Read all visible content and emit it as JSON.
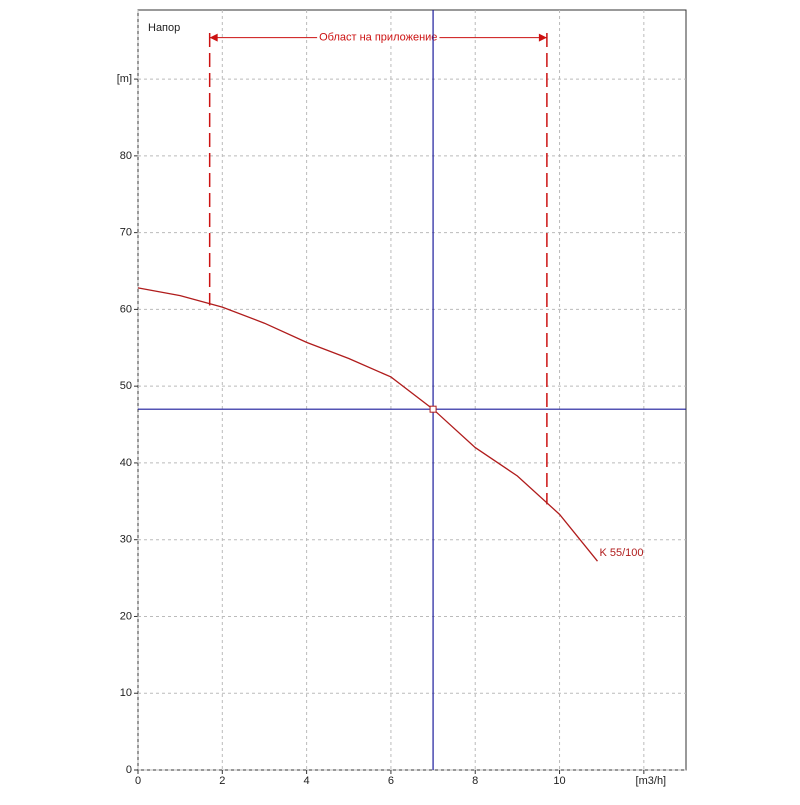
{
  "chart_data": {
    "type": "line",
    "title": "Напор",
    "x": [
      0,
      1,
      2,
      3,
      4,
      5,
      6,
      7,
      8,
      9,
      10,
      10.9
    ],
    "series": [
      {
        "name": "K 55/100",
        "color": "#b01c1c",
        "values": [
          62.8,
          61.8,
          60.3,
          58.2,
          55.7,
          53.6,
          51.2,
          47,
          42,
          38.3,
          33.3,
          27.2
        ]
      }
    ],
    "xlim": [
      0,
      13
    ],
    "ylim": [
      0,
      99
    ],
    "xticks": [
      0,
      2,
      4,
      6,
      8,
      10,
      {
        "value": 12,
        "label": "[m3/h]"
      }
    ],
    "yticks": [
      0,
      10,
      20,
      30,
      40,
      50,
      60,
      70,
      80,
      {
        "value": 90,
        "label": "[m]"
      }
    ],
    "grid": true,
    "operating_point": {
      "x": 7,
      "y": 47,
      "color": "#1c1c9c"
    },
    "application_range": {
      "label": "Област на приложение",
      "x": [
        1.7,
        9.7
      ],
      "top": 96,
      "bottom": [
        60.5,
        34.6
      ],
      "arrow_y": 95.4,
      "color": "#cc1111"
    }
  }
}
